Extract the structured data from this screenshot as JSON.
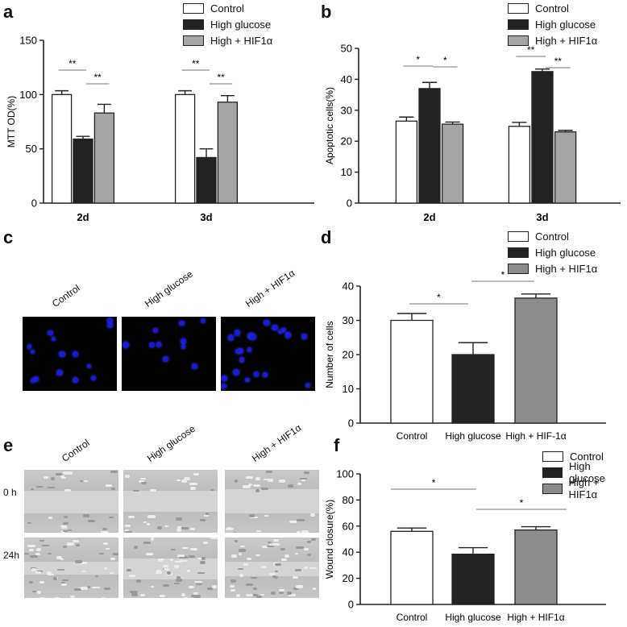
{
  "panels": {
    "a": "a",
    "b": "b",
    "c": "c",
    "d": "d",
    "e": "e",
    "f": "f"
  },
  "legend": {
    "control": "Control",
    "high_glucose": "High glucose",
    "high_hif": "High + HIF1α"
  },
  "colors": {
    "control": "#ffffff",
    "high_glucose": "#222222",
    "high_hif_a": "#a6a6a6",
    "high_hif_d": "#8c8c8c",
    "nuclei": "#1a1ad6"
  },
  "panel_c_labels": [
    "Control",
    "High glucose",
    "High + HIF1α"
  ],
  "panel_e_labels": [
    "Control",
    "High glucose",
    "High + HIF1α"
  ],
  "panel_e_rows": [
    "0 h",
    "24h"
  ],
  "chart_data": [
    {
      "panel": "a",
      "type": "bar",
      "categories": [
        "2d",
        "3d"
      ],
      "series": [
        {
          "name": "Control",
          "values": [
            100,
            100
          ],
          "errors": [
            3.5,
            3.5
          ]
        },
        {
          "name": "High glucose",
          "values": [
            59,
            42
          ],
          "errors": [
            2.5,
            8
          ]
        },
        {
          "name": "High + HIF1α",
          "values": [
            83,
            93
          ],
          "errors": [
            8,
            6
          ]
        }
      ],
      "ylabel": "MTT OD(%)",
      "ylim": [
        0,
        150
      ],
      "yticks": [
        0,
        50,
        100,
        150
      ],
      "significance": [
        "**",
        "**",
        "**",
        "**"
      ]
    },
    {
      "panel": "b",
      "type": "bar",
      "categories": [
        "2d",
        "3d"
      ],
      "series": [
        {
          "name": "Control",
          "values": [
            26.5,
            24.8
          ],
          "errors": [
            1.3,
            1.3
          ]
        },
        {
          "name": "High glucose",
          "values": [
            37,
            42.5
          ],
          "errors": [
            2,
            0.8
          ]
        },
        {
          "name": "High + HIF1α",
          "values": [
            25.5,
            23
          ],
          "errors": [
            0.7,
            0.5
          ]
        }
      ],
      "ylabel": "Apoptotic cells(%)",
      "ylim": [
        0,
        50
      ],
      "yticks": [
        0,
        10,
        20,
        30,
        40,
        50
      ],
      "significance": [
        "*",
        "*",
        "**",
        "**"
      ]
    },
    {
      "panel": "d",
      "type": "bar",
      "categories": [
        "Control",
        "High glucose",
        "High + HIF-1α"
      ],
      "values": [
        30,
        20,
        36.5
      ],
      "errors": [
        2,
        3.5,
        1.2
      ],
      "ylabel": "Number of cells",
      "ylim": [
        0,
        40
      ],
      "yticks": [
        0,
        10,
        20,
        30,
        40
      ],
      "significance": [
        "*",
        "*"
      ]
    },
    {
      "panel": "f",
      "type": "bar",
      "categories": [
        "Control",
        "High glucose",
        "High + HIF1α"
      ],
      "values": [
        56,
        38.5,
        57
      ],
      "errors": [
        2.5,
        5,
        2.5
      ],
      "ylabel": "Wound closure(%)",
      "ylim": [
        0,
        100
      ],
      "yticks": [
        0,
        20,
        40,
        60,
        80,
        100
      ],
      "significance": [
        "*",
        "*"
      ]
    }
  ]
}
